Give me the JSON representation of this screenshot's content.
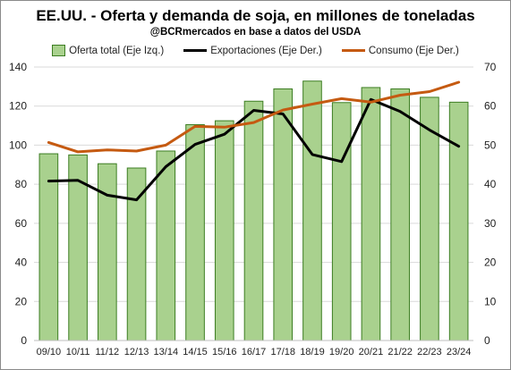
{
  "chart_data": {
    "type": "bar",
    "title": "EE.UU. - Oferta y demanda de soja, en millones de toneladas",
    "subtitle": "@BCRmercados en base a datos del USDA",
    "categories": [
      "09/10",
      "10/11",
      "11/12",
      "12/13",
      "13/14",
      "14/15",
      "15/16",
      "16/17",
      "17/18",
      "18/19",
      "19/20",
      "20/21",
      "21/22",
      "22/23",
      "23/24"
    ],
    "series": [
      {
        "name": "Oferta total (Eje Izq.)",
        "type": "bar",
        "axis": "left",
        "color": "#a9d18e",
        "border_color": "#3c7d22",
        "values": [
          95.6,
          95.0,
          90.5,
          88.3,
          97.0,
          110.5,
          112.5,
          122.5,
          128.8,
          132.8,
          121.8,
          129.5,
          128.8,
          124.5,
          122.0
        ]
      },
      {
        "name": "Exportaciones (Eje Der.)",
        "type": "line",
        "axis": "right",
        "color": "#000000",
        "values": [
          40.8,
          41.0,
          37.2,
          36.0,
          44.5,
          50.2,
          52.8,
          58.9,
          58.0,
          47.6,
          45.8,
          61.7,
          58.6,
          53.9,
          49.7
        ]
      },
      {
        "name": "Consumo (Eje Der.)",
        "type": "line",
        "axis": "right",
        "color": "#c55a11",
        "values": [
          50.7,
          48.3,
          48.8,
          48.5,
          50.0,
          54.8,
          54.6,
          55.8,
          59.0,
          60.5,
          61.9,
          61.0,
          62.8,
          63.7,
          66.1
        ]
      }
    ],
    "left_axis": {
      "ylim": [
        0,
        140
      ],
      "ticks": [
        "0",
        "20",
        "40",
        "60",
        "80",
        "100",
        "120",
        "140"
      ]
    },
    "right_axis": {
      "ylim": [
        0,
        70
      ],
      "ticks": [
        "0",
        "10",
        "20",
        "30",
        "40",
        "50",
        "60",
        "70"
      ]
    },
    "grid": true,
    "legend_position": "top"
  }
}
